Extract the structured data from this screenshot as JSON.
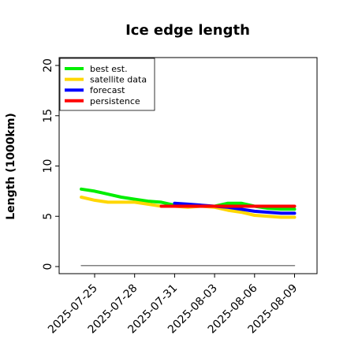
{
  "chart_data": {
    "type": "line",
    "title": "Ice edge length",
    "ylabel": "Length (1000km)",
    "xlabel": "",
    "ylim": [
      0,
      20
    ],
    "yticks": [
      0,
      5,
      10,
      15,
      20
    ],
    "xticks": [
      "2025-07-25",
      "2025-07-28",
      "2025-07-31",
      "2025-08-03",
      "2025-08-06",
      "2025-08-09"
    ],
    "highlighted_tick": "2025-07-31",
    "highlight_color": "#228b22",
    "grid": false,
    "legend_position": "top-left",
    "series": [
      {
        "name": "best est.",
        "color": "#00ee00",
        "x": [
          "2025-07-24",
          "2025-07-25",
          "2025-07-26",
          "2025-07-27",
          "2025-07-28",
          "2025-07-29",
          "2025-07-30",
          "2025-07-31",
          "2025-08-01",
          "2025-08-02",
          "2025-08-03",
          "2025-08-04",
          "2025-08-05",
          "2025-08-06",
          "2025-08-07",
          "2025-08-08",
          "2025-08-09"
        ],
        "values": [
          7.7,
          7.5,
          7.2,
          6.9,
          6.7,
          6.5,
          6.4,
          6.1,
          6.0,
          6.0,
          6.0,
          6.3,
          6.3,
          6.0,
          5.8,
          5.7,
          5.7
        ]
      },
      {
        "name": "satellite data",
        "color": "#ffd700",
        "x": [
          "2025-07-24",
          "2025-07-25",
          "2025-07-26",
          "2025-07-27",
          "2025-07-28",
          "2025-07-29",
          "2025-07-30",
          "2025-07-31",
          "2025-08-01",
          "2025-08-02",
          "2025-08-03",
          "2025-08-04",
          "2025-08-05",
          "2025-08-06",
          "2025-08-07",
          "2025-08-08",
          "2025-08-09"
        ],
        "values": [
          6.9,
          6.6,
          6.4,
          6.4,
          6.4,
          6.2,
          6.0,
          6.0,
          5.9,
          6.0,
          5.9,
          5.6,
          5.4,
          5.1,
          5.0,
          4.9,
          4.9
        ]
      },
      {
        "name": "forecast",
        "color": "#0000ff",
        "x": [
          "2025-07-31",
          "2025-08-01",
          "2025-08-02",
          "2025-08-03",
          "2025-08-04",
          "2025-08-05",
          "2025-08-06",
          "2025-08-07",
          "2025-08-08",
          "2025-08-09"
        ],
        "values": [
          6.3,
          6.2,
          6.1,
          6.0,
          5.9,
          5.7,
          5.5,
          5.4,
          5.3,
          5.3
        ]
      },
      {
        "name": "persistence",
        "color": "#ff0000",
        "x": [
          "2025-07-30",
          "2025-08-09"
        ],
        "values": [
          6.0,
          6.0
        ]
      },
      {
        "name": "",
        "color": "#808080",
        "x": [
          "2025-07-24",
          "2025-08-09"
        ],
        "values": [
          0.1,
          0.1
        ]
      }
    ]
  }
}
